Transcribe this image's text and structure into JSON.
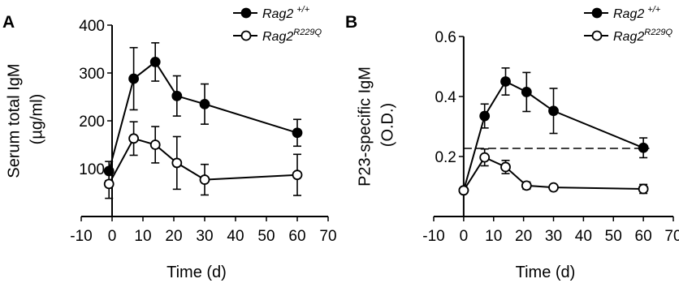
{
  "chart_data": [
    {
      "type": "line",
      "panel": "A",
      "ylabel_line1": "Serum total IgM",
      "ylabel_line2": "(µg/ml)",
      "xlabel": "Time (d)",
      "xlim": [
        -10,
        70
      ],
      "ylim": [
        0,
        400
      ],
      "xticks": [
        -10,
        0,
        10,
        20,
        30,
        40,
        50,
        60,
        70
      ],
      "yticks": [
        100,
        200,
        300,
        400
      ],
      "legend_position": "top-right",
      "series": [
        {
          "name": "Rag2",
          "name_sup": "+/+",
          "marker": "filled-circle",
          "x": [
            -1,
            7,
            14,
            21,
            30,
            60
          ],
          "y": [
            95,
            288,
            323,
            252,
            235,
            175
          ],
          "err": [
            20,
            65,
            40,
            42,
            42,
            28
          ]
        },
        {
          "name": "Rag2",
          "name_sup": "R229Q",
          "marker": "open-circle",
          "x": [
            -1,
            7,
            14,
            21,
            30,
            60
          ],
          "y": [
            68,
            163,
            150,
            112,
            77,
            87
          ],
          "err": [
            30,
            35,
            38,
            55,
            32,
            43
          ]
        }
      ]
    },
    {
      "type": "line",
      "panel": "B",
      "ylabel_line1": "P23-specific IgM",
      "ylabel_line2": "(O.D.)",
      "xlabel": "Time (d)",
      "xlim": [
        -10,
        70
      ],
      "ylim": [
        0,
        0.6
      ],
      "xticks": [
        -10,
        0,
        10,
        20,
        30,
        40,
        50,
        60,
        70
      ],
      "yticks": [
        0.2,
        0.4,
        0.6
      ],
      "threshold": 0.227,
      "legend_position": "top-right",
      "series": [
        {
          "name": "Rag2",
          "name_sup": "+/+",
          "marker": "filled-circle",
          "x": [
            0,
            7,
            14,
            21,
            30,
            60
          ],
          "y": [
            0.087,
            0.335,
            0.45,
            0.415,
            0.352,
            0.229
          ],
          "err": [
            0.005,
            0.04,
            0.045,
            0.065,
            0.075,
            0.033
          ]
        },
        {
          "name": "Rag2",
          "name_sup": "R229Q",
          "marker": "open-circle",
          "x": [
            0,
            7,
            14,
            21,
            30,
            60
          ],
          "y": [
            0.087,
            0.197,
            0.165,
            0.103,
            0.097,
            0.092
          ],
          "err": [
            0.005,
            0.028,
            0.022,
            0.012,
            0.006,
            0.015
          ]
        }
      ]
    }
  ]
}
